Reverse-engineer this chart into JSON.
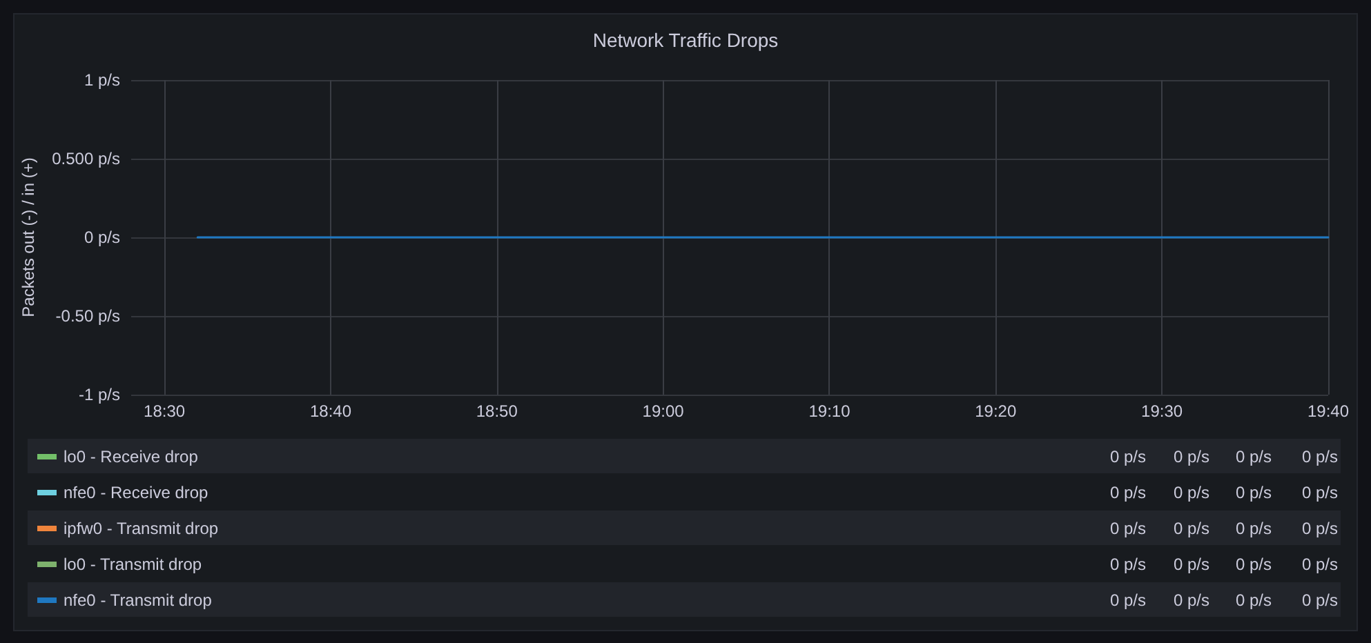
{
  "chart_data": {
    "type": "line",
    "title": "Network Traffic Drops",
    "ylabel": "Packets out (-) / in (+)",
    "x": [
      18.5333,
      19.6667
    ],
    "xlim": [
      18.4667,
      19.6667
    ],
    "xticks": [
      {
        "value": 18.5,
        "label": "18:30"
      },
      {
        "value": 18.6667,
        "label": "18:40"
      },
      {
        "value": 18.8333,
        "label": "18:50"
      },
      {
        "value": 19.0,
        "label": "19:00"
      },
      {
        "value": 19.1667,
        "label": "19:10"
      },
      {
        "value": 19.3333,
        "label": "19:20"
      },
      {
        "value": 19.5,
        "label": "19:30"
      },
      {
        "value": 19.6667,
        "label": "19:40"
      }
    ],
    "ylim": [
      -1,
      1
    ],
    "yticks": [
      {
        "value": -1,
        "label": "-1 p/s"
      },
      {
        "value": -0.5,
        "label": "-0.50 p/s"
      },
      {
        "value": 0,
        "label": "0 p/s"
      },
      {
        "value": 0.5,
        "label": "0.500 p/s"
      },
      {
        "value": 1,
        "label": "1 p/s"
      }
    ],
    "series": [
      {
        "name": "lo0 - Receive drop",
        "color": "#73bf69",
        "values": [
          null,
          null
        ]
      },
      {
        "name": "nfe0 - Receive drop",
        "color": "#6ed0e0",
        "values": [
          null,
          null
        ]
      },
      {
        "name": "ipfw0 - Transmit drop",
        "color": "#ef843c",
        "values": [
          null,
          null
        ]
      },
      {
        "name": "lo0 - Transmit drop",
        "color": "#7eb26d",
        "values": [
          null,
          null
        ]
      },
      {
        "name": "nfe0 - Transmit drop",
        "color": "#1f78c1",
        "values": [
          0,
          0
        ]
      }
    ],
    "annotations": [
      "0 p/s",
      "0 p/s",
      "0 p/s",
      "0 p/s",
      "0 p/s",
      "0 p/s",
      "0 p/s",
      "0 p/s",
      "0 p/s",
      "0 p/s",
      "0 p/s",
      "0 p/s",
      "0 p/s",
      "0 p/s",
      "0 p/s",
      "0 p/s",
      "0 p/s",
      "0 p/s",
      "0 p/s",
      "0 p/s"
    ],
    "grid": true,
    "legend": "bottom",
    "marker": "none",
    "line_style": "solid"
  }
}
